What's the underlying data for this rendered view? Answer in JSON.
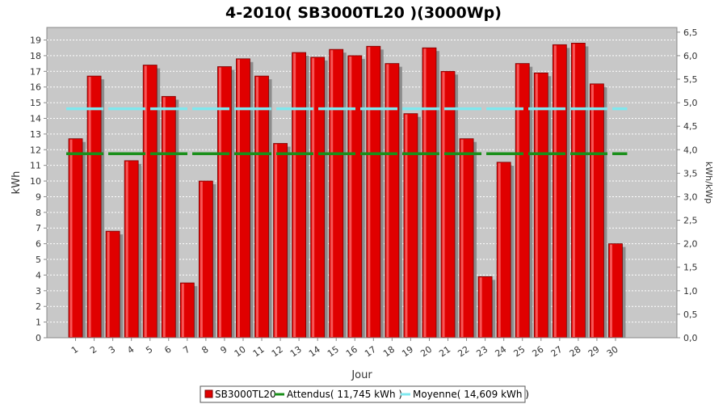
{
  "chart_data": {
    "type": "bar",
    "title": "4-2010( SB3000TL20 )(3000Wp)",
    "xlabel": "Jour",
    "ylabel": "kWh",
    "y2label": "kWh/kWp",
    "ylim": [
      0,
      19.8
    ],
    "y2lim": [
      0,
      6.6
    ],
    "yticks": [
      0,
      1,
      2,
      3,
      4,
      5,
      6,
      7,
      8,
      9,
      10,
      11,
      12,
      13,
      14,
      15,
      16,
      17,
      18,
      19
    ],
    "y2ticks": [
      "0,0",
      "0,5",
      "1,0",
      "1,5",
      "2,0",
      "2,5",
      "3,0",
      "3,5",
      "4,0",
      "4,5",
      "5,0",
      "5,5",
      "6,0",
      "6,5"
    ],
    "categories": [
      "1",
      "2",
      "3",
      "4",
      "5",
      "6",
      "7",
      "8",
      "9",
      "10",
      "11",
      "12",
      "13",
      "14",
      "15",
      "16",
      "17",
      "18",
      "19",
      "20",
      "21",
      "22",
      "23",
      "24",
      "25",
      "26",
      "27",
      "28",
      "29",
      "30"
    ],
    "series": [
      {
        "name": "SB3000TL20",
        "color": "#e00000",
        "values": [
          12.7,
          16.7,
          6.8,
          11.3,
          17.4,
          15.4,
          3.5,
          10.0,
          17.3,
          17.8,
          16.7,
          12.4,
          18.2,
          17.9,
          18.4,
          18.0,
          18.6,
          17.5,
          14.3,
          18.5,
          17.0,
          12.7,
          3.9,
          11.2,
          17.5,
          16.9,
          18.7,
          18.8,
          16.2,
          6.0
        ]
      }
    ],
    "reference_lines": [
      {
        "name": "Attendus",
        "value": 11.745,
        "color": "#1a8f1a",
        "legend": "Attendus( 11,745 kWh )"
      },
      {
        "name": "Moyenne",
        "value": 14.609,
        "color": "#7fe8ef",
        "legend": "Moyenne( 14,609 kWh )"
      }
    ],
    "legend_position": "bottom",
    "grid": true
  }
}
